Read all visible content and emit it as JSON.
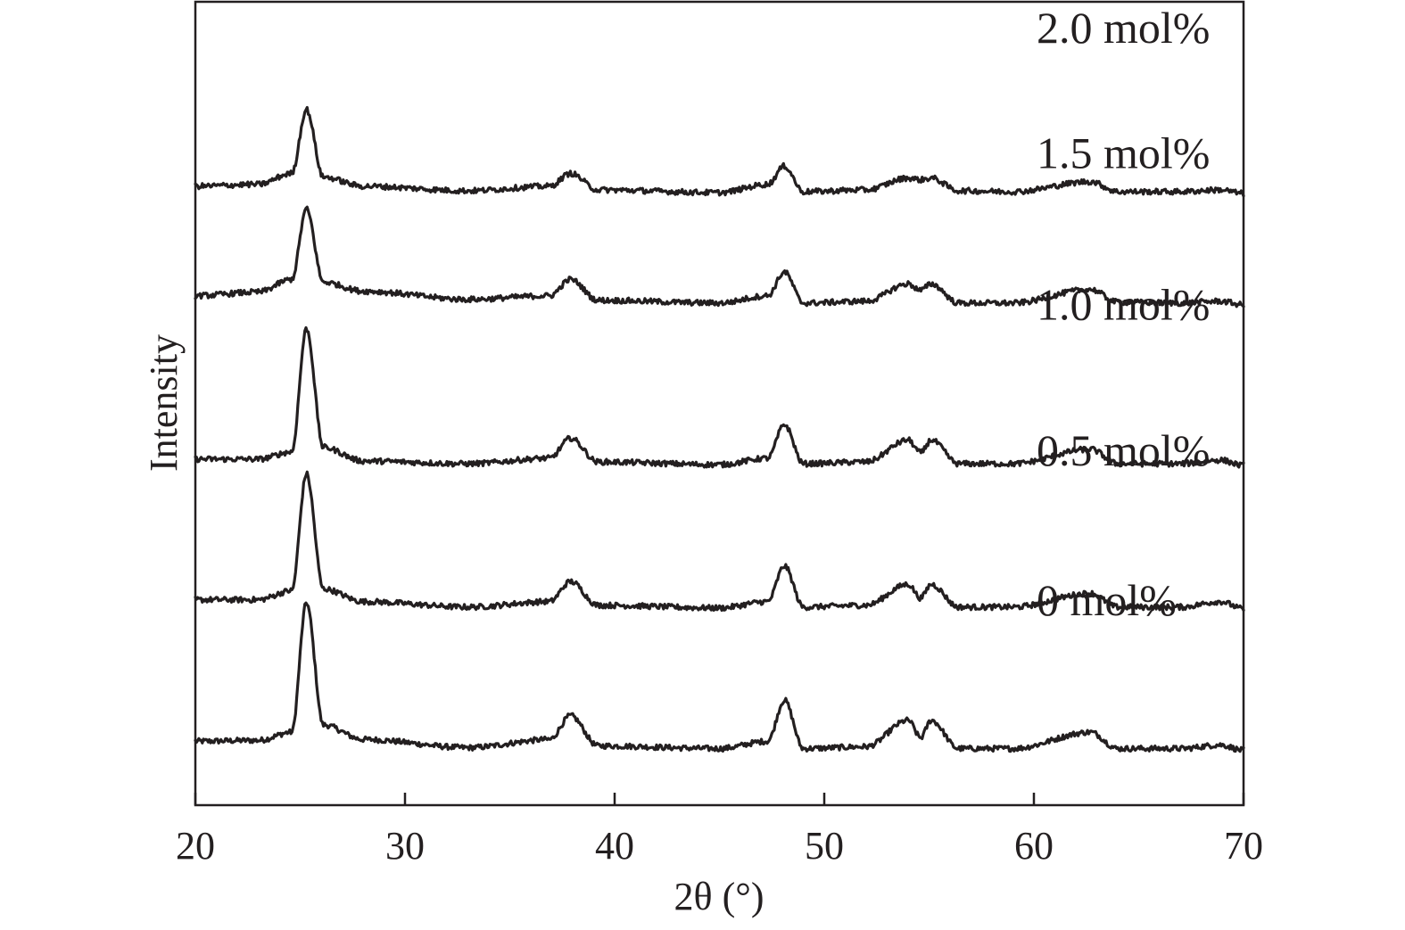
{
  "chart_data": {
    "type": "line",
    "xlabel": "2θ (°)",
    "ylabel": "Intensity",
    "xlim": [
      20,
      70
    ],
    "xticks": [
      "20",
      "30",
      "40",
      "50",
      "60",
      "70"
    ],
    "ylim": [
      -0.6,
      8.2
    ],
    "grid": false,
    "legend": "inline-labels-right",
    "line_color": "#231f20",
    "peaks_2theta": [
      25.3,
      37.9,
      48.1,
      54.0,
      55.1,
      62.7,
      68.9
    ],
    "series": [
      {
        "name": "0 mol%",
        "offset": 0.0,
        "label_y": 1.48,
        "x": [
          20,
          23,
          24.6,
          25.3,
          26.1,
          28,
          33,
          36.9,
          37.9,
          39.2,
          45,
          47.3,
          48.1,
          49.0,
          52,
          54.0,
          54.6,
          55.1,
          56.4,
          59,
          62.7,
          64,
          67,
          68.9,
          70
        ],
        "y": [
          0.1,
          0.11,
          0.2,
          1.62,
          0.28,
          0.12,
          0.03,
          0.12,
          0.38,
          0.05,
          0.02,
          0.1,
          0.55,
          0.02,
          0.04,
          0.33,
          0.14,
          0.33,
          0.02,
          0.02,
          0.2,
          0.02,
          0.02,
          0.06,
          0.0
        ]
      },
      {
        "name": "0.5 mol%",
        "offset": 1.55,
        "label_y": 3.12,
        "x": [
          20,
          23,
          24.6,
          25.3,
          26.1,
          28,
          33,
          36.9,
          37.9,
          39.2,
          45,
          47.3,
          48.1,
          49.0,
          52,
          54.0,
          54.6,
          55.1,
          56.4,
          59,
          62.7,
          64,
          67,
          68.9,
          70
        ],
        "y": [
          0.1,
          0.1,
          0.2,
          1.48,
          0.22,
          0.08,
          0.02,
          0.08,
          0.3,
          0.04,
          0.01,
          0.08,
          0.47,
          0.02,
          0.04,
          0.27,
          0.12,
          0.27,
          0.02,
          0.02,
          0.17,
          0.02,
          0.02,
          0.08,
          0.0
        ]
      },
      {
        "name": "1.0 mol%",
        "offset": 3.12,
        "label_y": 4.72,
        "x": [
          20,
          23,
          24.6,
          25.3,
          26.1,
          28,
          33,
          36.9,
          37.9,
          39.2,
          45,
          47.3,
          48.1,
          49.0,
          52,
          54.0,
          54.6,
          55.1,
          56.4,
          59,
          62.7,
          64,
          67,
          68.9,
          70
        ],
        "y": [
          0.07,
          0.07,
          0.15,
          1.5,
          0.2,
          0.05,
          0.02,
          0.08,
          0.3,
          0.04,
          0.01,
          0.08,
          0.45,
          0.02,
          0.04,
          0.28,
          0.14,
          0.28,
          0.02,
          0.02,
          0.18,
          0.02,
          0.02,
          0.06,
          0.0
        ]
      },
      {
        "name": "1.5 mol%",
        "offset": 4.88,
        "label_y": 6.38,
        "x": [
          20,
          23,
          24.6,
          25.3,
          26.1,
          28,
          33,
          36.9,
          37.9,
          39.2,
          45,
          47.3,
          48.1,
          49.0,
          52,
          54.0,
          54.6,
          55.1,
          56.4,
          59,
          62.7,
          64,
          67,
          68.9,
          70
        ],
        "y": [
          0.1,
          0.14,
          0.28,
          1.05,
          0.25,
          0.15,
          0.06,
          0.1,
          0.28,
          0.05,
          0.02,
          0.1,
          0.36,
          0.02,
          0.04,
          0.23,
          0.16,
          0.23,
          0.02,
          0.02,
          0.17,
          0.03,
          0.02,
          0.04,
          0.0
        ]
      },
      {
        "name": "2.0 mol%",
        "offset": 6.1,
        "label_y": 7.75,
        "x": [
          20,
          23,
          24.6,
          25.3,
          26.1,
          28,
          33,
          36.9,
          37.9,
          39.2,
          45,
          47.3,
          48.1,
          49.0,
          52,
          54.0,
          54.6,
          55.1,
          56.4,
          59,
          62.7,
          64,
          67,
          68.9,
          70
        ],
        "y": [
          0.08,
          0.1,
          0.22,
          0.92,
          0.18,
          0.08,
          0.03,
          0.08,
          0.22,
          0.04,
          0.01,
          0.1,
          0.3,
          0.02,
          0.04,
          0.17,
          0.15,
          0.17,
          0.03,
          0.02,
          0.13,
          0.02,
          0.02,
          0.04,
          0.0
        ]
      }
    ]
  }
}
